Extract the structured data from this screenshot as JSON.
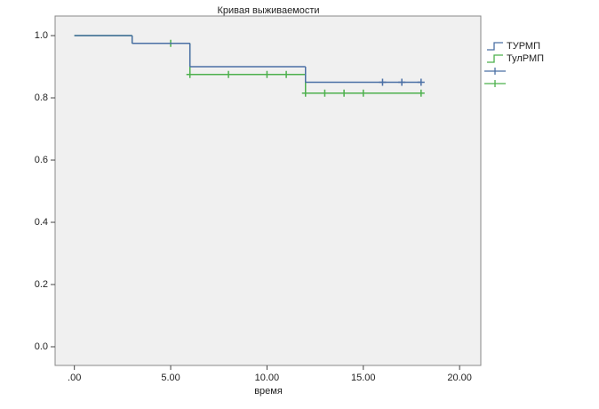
{
  "chart_data": {
    "type": "survival",
    "title": "Кривая выживаемости",
    "x_label": "время",
    "xlim": [
      -1,
      21.1
    ],
    "ylim": [
      -0.06,
      1.063
    ],
    "xticks": [
      {
        "value": 0,
        "label": ".00"
      },
      {
        "value": 5,
        "label": "5.00"
      },
      {
        "value": 10,
        "label": "10.00"
      },
      {
        "value": 15,
        "label": "15.00"
      },
      {
        "value": 20,
        "label": "20.00"
      }
    ],
    "yticks": [
      {
        "value": 0,
        "label": "0.0"
      },
      0.2,
      0.4,
      0.6,
      0.8,
      {
        "value": 1,
        "label": "1.0"
      }
    ],
    "series": [
      {
        "name": "ТУРМП",
        "color": "#4a6fa5",
        "x": [
          0,
          3,
          6,
          12,
          18
        ],
        "values": [
          1,
          0.975,
          0.9,
          0.85,
          0.85
        ],
        "censored": {
          "x": [
            16,
            17,
            18
          ],
          "values": [
            0.85,
            0.85,
            0.85
          ]
        }
      },
      {
        "name": "ТулРМП",
        "color": "#4cb04c",
        "x": [
          0,
          3,
          6,
          12,
          18
        ],
        "values": [
          1,
          0.975,
          0.875,
          0.815,
          0.815
        ],
        "censored": {
          "x": [
            5,
            6,
            8,
            10,
            11,
            12,
            13,
            14,
            15,
            18
          ],
          "values": [
            0.975,
            0.875,
            0.875,
            0.875,
            0.875,
            0.815,
            0.815,
            0.815,
            0.815,
            0.815
          ]
        }
      }
    ]
  }
}
